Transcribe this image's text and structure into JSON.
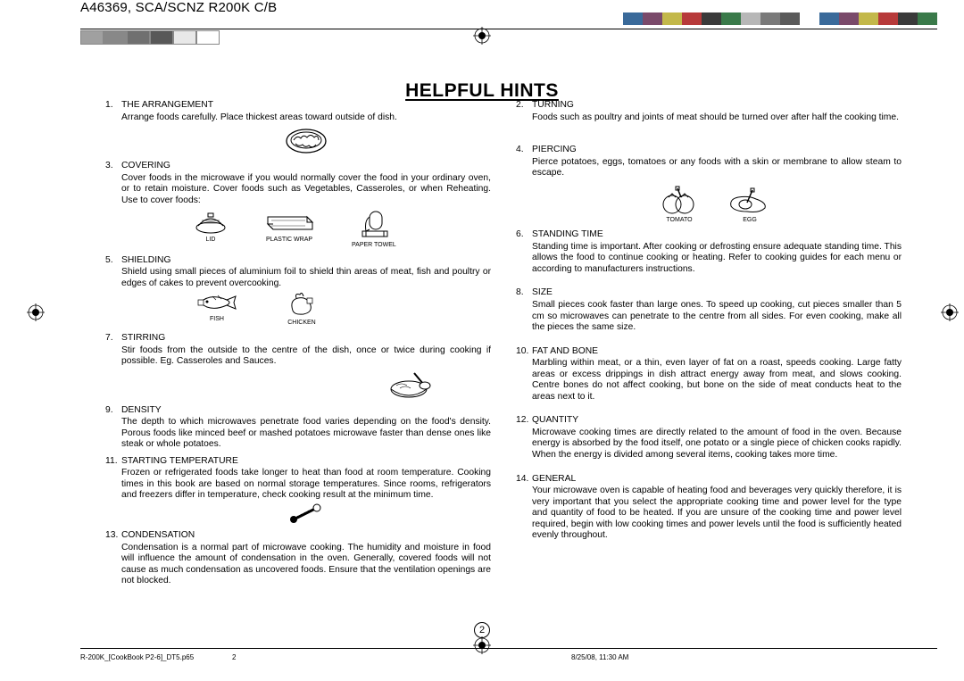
{
  "header_code": "A46369, SCA/SCNZ R200K C/B",
  "color_bar": [
    "#3a6a9a",
    "#7a4a6a",
    "#c3b84a",
    "#b73a3a",
    "#3a3a3a",
    "#3a7a4a",
    "#b7b7b7",
    "#7a7a7a",
    "#5a5a5a",
    "#ffffff",
    "#3a6a9a",
    "#7a4a6a",
    "#c3b84a",
    "#b73a3a",
    "#3a3a3a",
    "#3a7a4a"
  ],
  "gray_boxes": [
    "#a0a0a0",
    "#888888",
    "#707070",
    "#585858",
    "#e8e8e8",
    "#ffffff"
  ],
  "title": "HELPFUL HINTS",
  "page_number": "2",
  "footer_file": "R-200K_[CookBook P2-6]_DT5.p65",
  "footer_page": "2",
  "footer_date": "8/25/08, 11:30 AM",
  "left_hints": [
    {
      "num": "1.",
      "title": "THE ARRANGEMENT",
      "body": "Arrange foods carefully. Place thickest areas toward outside of dish."
    },
    {
      "num": "3.",
      "title": "COVERING",
      "body": "Cover foods in the microwave if you would normally cover the food in your ordinary oven, or to retain moisture. Cover foods such as Vegetables, Casseroles, or when Reheating.\nUse to cover foods:"
    },
    {
      "num": "5.",
      "title": "SHIELDING",
      "body": "Shield using small pieces of aluminium foil to shield thin areas of meat, fish and poultry or edges of cakes to prevent overcooking."
    },
    {
      "num": "7.",
      "title": "STIRRING",
      "body": "Stir foods from the outside to the centre of the dish, once or twice during cooking if possible.\nEg. Casseroles and Sauces."
    },
    {
      "num": "9.",
      "title": "DENSITY",
      "body": "The depth to which microwaves penetrate food varies depending on the food's density. Porous foods like minced beef or mashed potatoes microwave faster than dense ones like steak or whole potatoes."
    },
    {
      "num": "11.",
      "title": "STARTING TEMPERATURE",
      "body": "Frozen or refrigerated foods take longer to heat than food at room temperature. Cooking times in this book are based on normal storage temperatures. Since rooms, refrigerators and freezers differ in temperature, check cooking result at the minimum time."
    },
    {
      "num": "13.",
      "title": "CONDENSATION",
      "body": "Condensation is a normal part of microwave cooking. The humidity and moisture in food will influence the amount of condensation in the oven. Generally, covered foods will not cause as much condensation as uncovered foods. Ensure that the ventilation openings are not blocked."
    }
  ],
  "right_hints": [
    {
      "num": "2.",
      "title": "TURNING",
      "body": "Foods such as poultry and joints of meat should be turned over after half the cooking time."
    },
    {
      "num": "4.",
      "title": "PIERCING",
      "body": "Pierce potatoes, eggs, tomatoes or any foods with a skin or membrane to allow steam to escape."
    },
    {
      "num": "6.",
      "title": "STANDING TIME",
      "body": "Standing time is important. After cooking or defrosting ensure adequate standing time. This allows the food to continue cooking or heating. Refer to cooking guides for each menu or according to manufacturers instructions."
    },
    {
      "num": "8.",
      "title": "SIZE",
      "body": "Small pieces cook faster than large ones. To speed up cooking, cut pieces smaller than 5 cm so microwaves can penetrate to the centre from all sides. For even cooking, make all the pieces the same size."
    },
    {
      "num": "10.",
      "title": "FAT AND BONE",
      "body": "Marbling within meat, or a thin, even layer of fat on a roast, speeds cooking. Large fatty areas or excess drippings in dish attract energy away from meat, and slows cooking. Centre bones do not affect cooking, but bone on the side of meat conducts heat to the areas next to it."
    },
    {
      "num": "12.",
      "title": "QUANTITY",
      "body": "Microwave cooking times are directly related to the amount of food in the oven. Because energy is absorbed by the food itself, one potato or a single piece of chicken cooks rapidly. When the energy is divided among several items, cooking takes more time."
    },
    {
      "num": "14.",
      "title": "GENERAL",
      "body": "Your microwave oven is capable of heating food and beverages very quickly therefore, it is very important that you select the appropriate cooking time and power level for the type and quantity of food to be heated. If you are unsure of the cooking time and power level required, begin with low cooking times and power levels until the food is sufficiently heated evenly throughout."
    }
  ],
  "cover_labels": {
    "lid": "LID",
    "wrap": "PLASTIC WRAP",
    "towel": "PAPER TOWEL"
  },
  "shield_labels": {
    "fish": "FISH",
    "chicken": "CHICKEN"
  },
  "pierce_labels": {
    "tomato": "TOMATO",
    "egg": "EGG"
  }
}
